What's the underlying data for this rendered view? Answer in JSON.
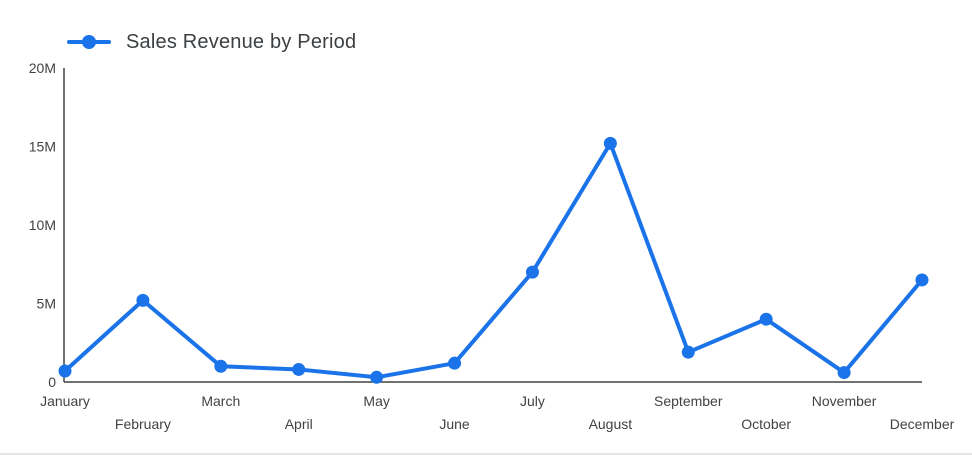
{
  "legend": {
    "series_label": "Sales Revenue by Period"
  },
  "colors": {
    "series": "#1a73e8",
    "axis": "#424242",
    "tick_label": "#424242",
    "legend_text": "#3c4043",
    "background": "#ffffff",
    "card_border": "#e4e4e4"
  },
  "chart_data": {
    "type": "line",
    "title": "Sales Revenue by Period",
    "xlabel": "",
    "ylabel": "",
    "categories": [
      "January",
      "February",
      "March",
      "April",
      "May",
      "June",
      "July",
      "August",
      "September",
      "October",
      "November",
      "December"
    ],
    "series": [
      {
        "name": "Sales Revenue by Period",
        "values": [
          700000,
          5200000,
          1000000,
          800000,
          300000,
          1200000,
          7000000,
          15200000,
          1900000,
          4000000,
          600000,
          6500000
        ]
      }
    ],
    "ylim": [
      0,
      20000000
    ],
    "y_ticks": [
      {
        "label": "0",
        "value": 0
      },
      {
        "label": "5M",
        "value": 5000000
      },
      {
        "label": "10M",
        "value": 10000000
      },
      {
        "label": "15M",
        "value": 15000000
      },
      {
        "label": "20M",
        "value": 20000000
      }
    ],
    "grid": false,
    "legend_position": "top-left",
    "marker": "circle",
    "x_labels_staggered": true
  }
}
